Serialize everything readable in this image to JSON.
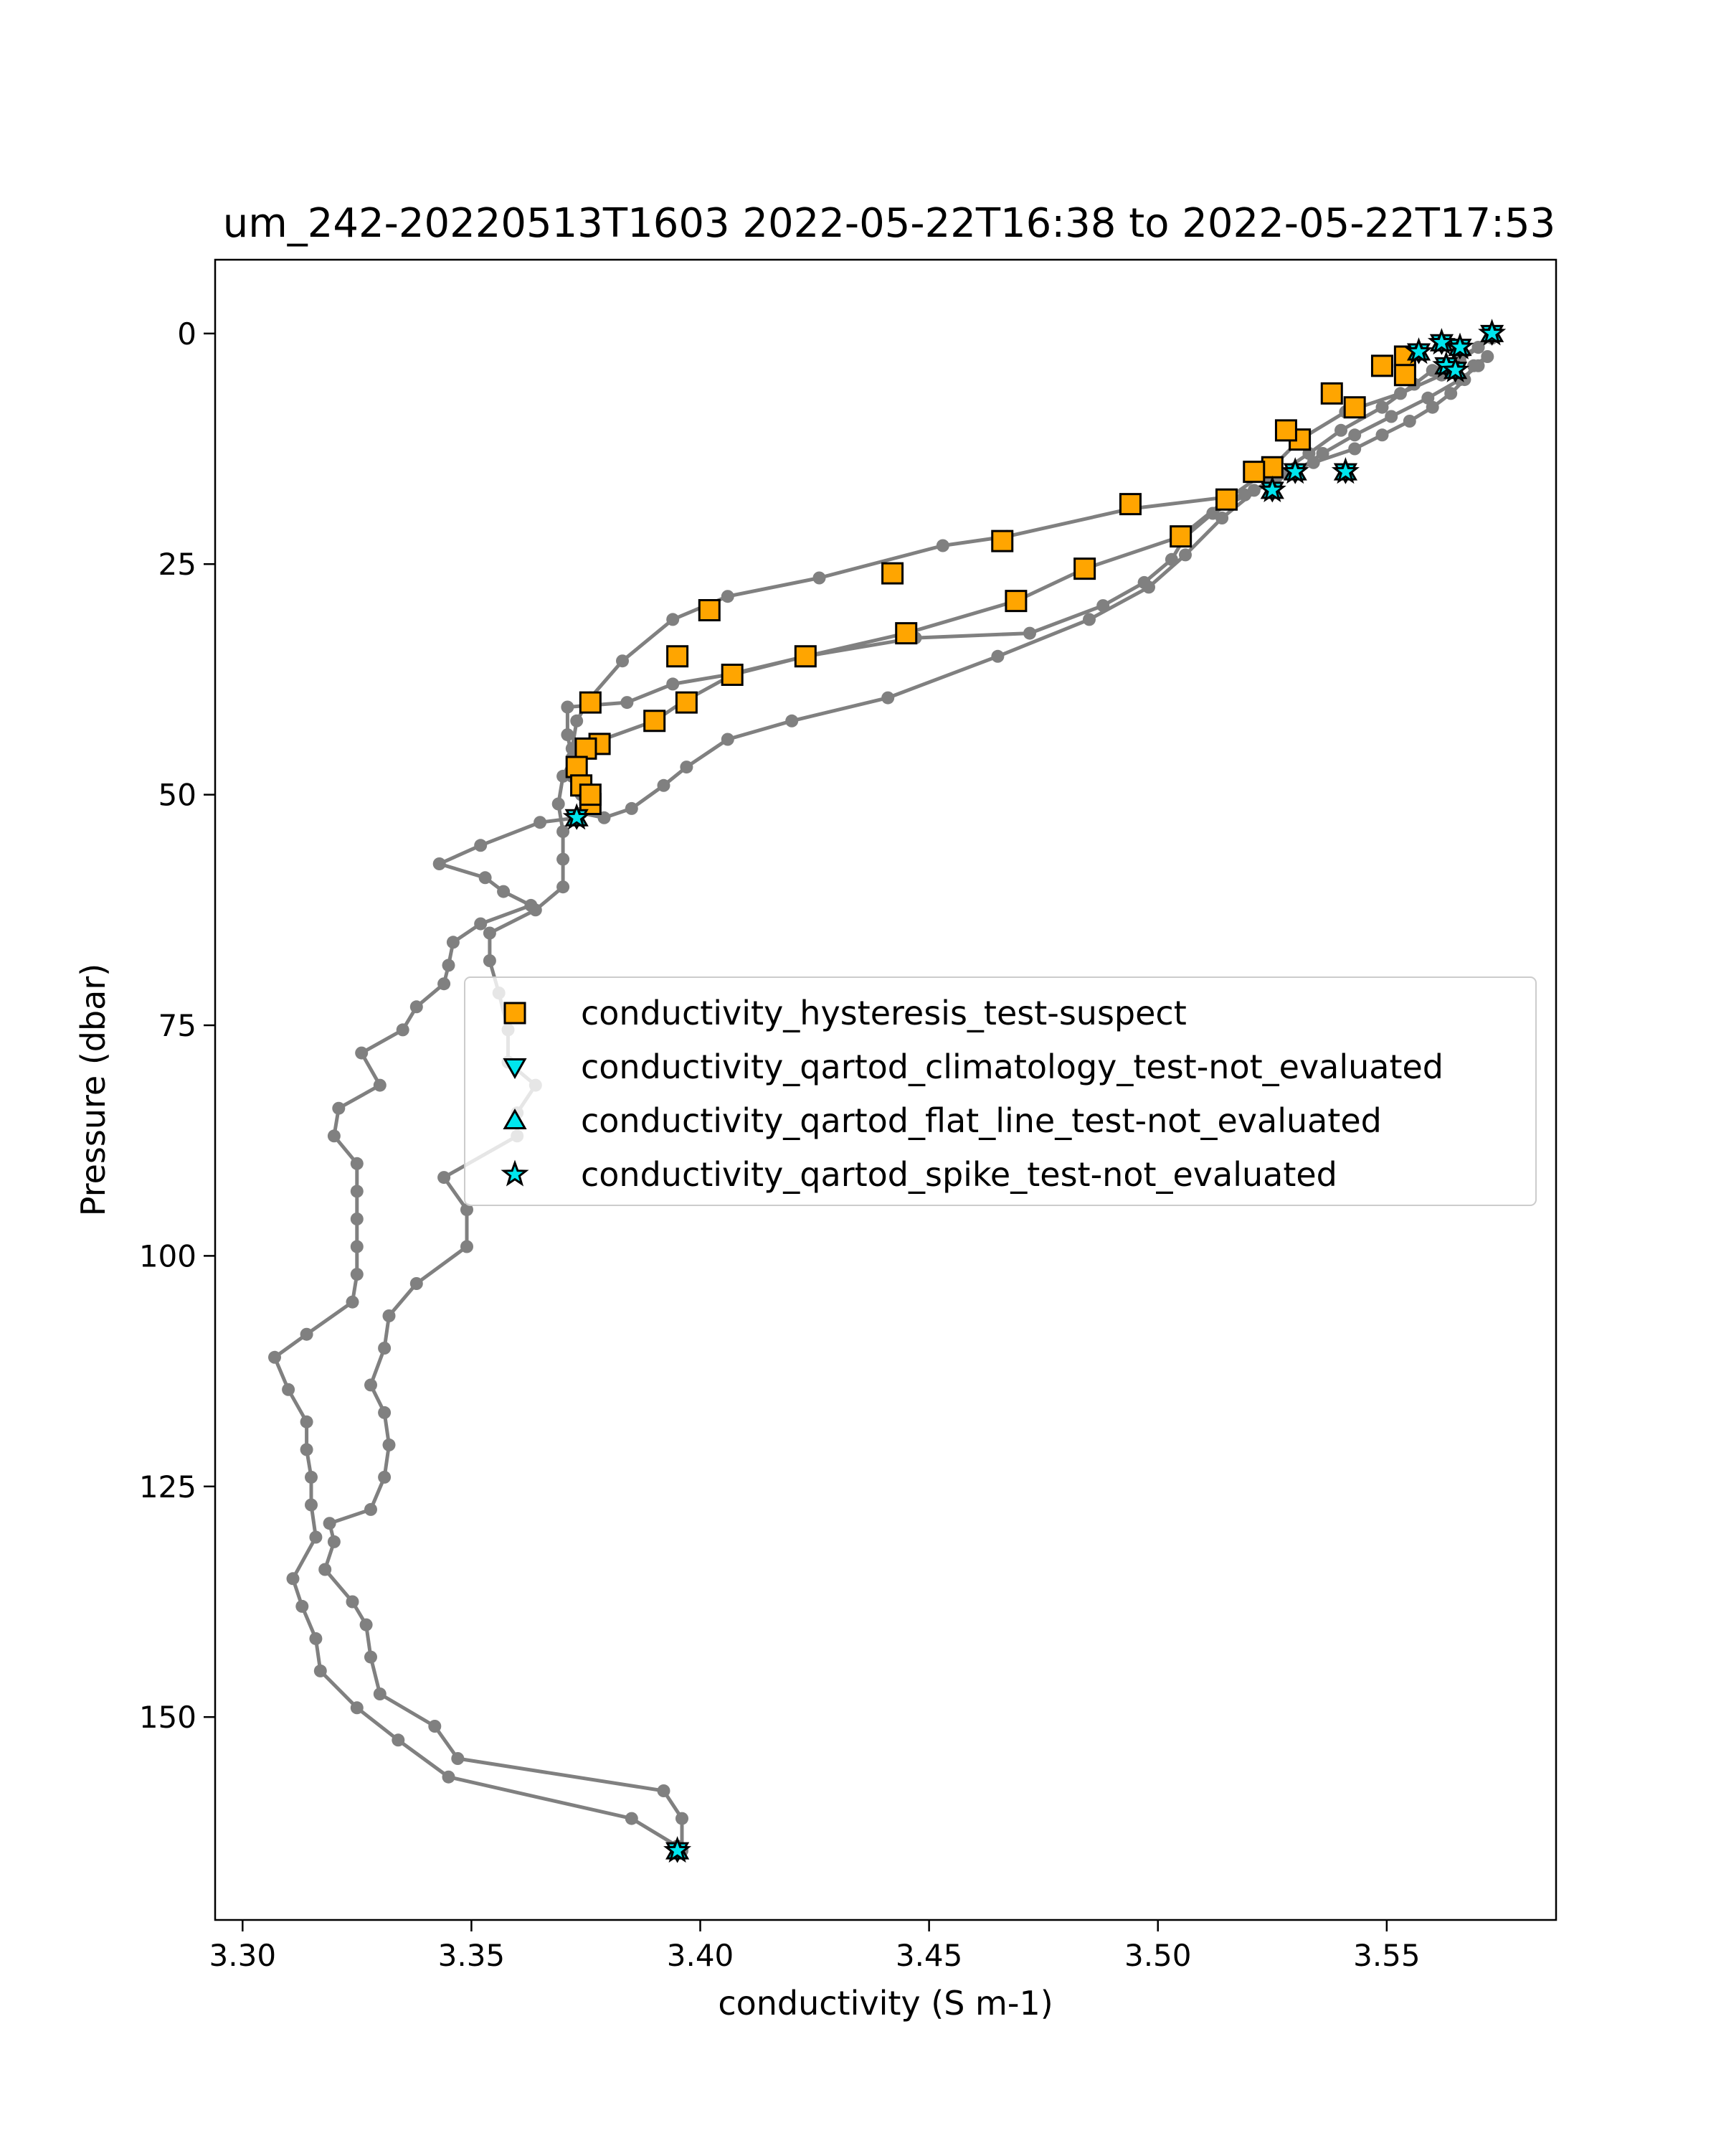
{
  "chart_data": {
    "type": "scatter",
    "title": "um_242-20220513T1603 2022-05-22T16:38 to 2022-05-22T17:53",
    "xlabel": "conductivity (S m-1)",
    "ylabel": "Pressure (dbar)",
    "xlim": [
      3.294,
      3.587
    ],
    "ylim": [
      172,
      -8
    ],
    "y_inverted": true,
    "grid": false,
    "legend_position": "center-right",
    "x_ticks": [
      3.3,
      3.35,
      3.4,
      3.45,
      3.5,
      3.55
    ],
    "x_tick_labels": [
      "3.30",
      "3.35",
      "3.40",
      "3.45",
      "3.50",
      "3.55"
    ],
    "y_ticks": [
      0,
      25,
      50,
      75,
      100,
      125,
      150
    ],
    "y_tick_labels": [
      "0",
      "25",
      "50",
      "75",
      "100",
      "125",
      "150"
    ],
    "profile": {
      "color": "#808080",
      "points": [
        [
          3.573,
          0
        ],
        [
          3.57,
          1.5
        ],
        [
          3.566,
          3
        ],
        [
          3.562,
          4.5
        ],
        [
          3.553,
          6.5
        ],
        [
          3.541,
          8.5
        ],
        [
          3.531,
          11.5
        ],
        [
          3.525,
          14.5
        ],
        [
          3.515,
          18
        ],
        [
          3.505,
          22
        ],
        [
          3.484,
          25.5
        ],
        [
          3.469,
          29
        ],
        [
          3.445,
          32.5
        ],
        [
          3.423,
          35
        ],
        [
          3.407,
          37
        ],
        [
          3.396,
          40
        ],
        [
          3.39,
          42
        ],
        [
          3.376,
          44.5
        ],
        [
          3.374,
          45
        ],
        [
          3.373,
          47
        ],
        [
          3.374,
          49
        ],
        [
          3.376,
          51
        ],
        [
          3.373,
          52.5
        ],
        [
          3.365,
          53
        ],
        [
          3.352,
          55.5
        ],
        [
          3.343,
          57.5
        ],
        [
          3.353,
          59
        ],
        [
          3.357,
          60.5
        ],
        [
          3.363,
          62
        ],
        [
          3.352,
          64
        ],
        [
          3.346,
          66
        ],
        [
          3.345,
          68.5
        ],
        [
          3.344,
          70.5
        ],
        [
          3.338,
          73
        ],
        [
          3.335,
          75.5
        ],
        [
          3.326,
          78
        ],
        [
          3.33,
          81.5
        ],
        [
          3.321,
          84
        ],
        [
          3.32,
          87
        ],
        [
          3.325,
          90
        ],
        [
          3.325,
          93
        ],
        [
          3.325,
          96
        ],
        [
          3.325,
          99
        ],
        [
          3.325,
          102
        ],
        [
          3.324,
          105
        ],
        [
          3.314,
          108.5
        ],
        [
          3.307,
          111
        ],
        [
          3.31,
          114.5
        ],
        [
          3.314,
          118
        ],
        [
          3.314,
          121
        ],
        [
          3.315,
          124
        ],
        [
          3.315,
          127
        ],
        [
          3.316,
          130.5
        ],
        [
          3.311,
          135
        ],
        [
          3.313,
          138
        ],
        [
          3.316,
          141.5
        ],
        [
          3.317,
          145
        ],
        [
          3.325,
          149
        ],
        [
          3.334,
          152.5
        ],
        [
          3.345,
          156.5
        ],
        [
          3.385,
          161
        ],
        [
          3.395,
          164
        ],
        [
          3.396,
          164.5
        ],
        [
          3.396,
          161
        ],
        [
          3.392,
          158
        ],
        [
          3.347,
          154.5
        ],
        [
          3.342,
          151
        ],
        [
          3.33,
          147.5
        ],
        [
          3.328,
          143.5
        ],
        [
          3.327,
          140
        ],
        [
          3.324,
          137.5
        ],
        [
          3.318,
          134
        ],
        [
          3.32,
          131
        ],
        [
          3.319,
          129
        ],
        [
          3.328,
          127.5
        ],
        [
          3.331,
          124
        ],
        [
          3.332,
          120.5
        ],
        [
          3.331,
          117
        ],
        [
          3.328,
          114
        ],
        [
          3.331,
          110
        ],
        [
          3.332,
          106.5
        ],
        [
          3.338,
          103
        ],
        [
          3.349,
          99
        ],
        [
          3.349,
          95
        ],
        [
          3.344,
          91.5
        ],
        [
          3.36,
          87
        ],
        [
          3.36,
          84.5
        ],
        [
          3.364,
          81.5
        ],
        [
          3.358,
          79
        ],
        [
          3.358,
          75.5
        ],
        [
          3.356,
          71.5
        ],
        [
          3.354,
          68
        ],
        [
          3.354,
          65
        ],
        [
          3.364,
          62.5
        ],
        [
          3.37,
          60
        ],
        [
          3.37,
          57
        ],
        [
          3.37,
          54
        ],
        [
          3.369,
          51
        ],
        [
          3.37,
          48
        ],
        [
          3.372,
          46
        ],
        [
          3.371,
          43.5
        ],
        [
          3.371,
          40.5
        ],
        [
          3.384,
          40
        ],
        [
          3.394,
          38
        ],
        [
          3.406,
          37
        ],
        [
          3.423,
          35
        ],
        [
          3.447,
          33
        ],
        [
          3.472,
          32.5
        ],
        [
          3.488,
          29.5
        ],
        [
          3.497,
          27
        ],
        [
          3.503,
          24.5
        ],
        [
          3.506,
          22
        ],
        [
          3.512,
          19.5
        ],
        [
          3.521,
          17
        ],
        [
          3.526,
          15.5
        ],
        [
          3.534,
          14
        ],
        [
          3.543,
          12.5
        ],
        [
          3.549,
          11
        ],
        [
          3.555,
          9.5
        ],
        [
          3.56,
          8
        ],
        [
          3.564,
          6.5
        ],
        [
          3.567,
          5
        ],
        [
          3.569,
          3.5
        ],
        [
          3.572,
          2.5
        ],
        [
          3.57,
          3.5
        ],
        [
          3.566,
          5
        ],
        [
          3.559,
          7
        ],
        [
          3.551,
          9
        ],
        [
          3.543,
          11
        ],
        [
          3.536,
          13
        ],
        [
          3.53,
          15
        ],
        [
          3.519,
          17.5
        ],
        [
          3.494,
          19
        ],
        [
          3.467,
          22
        ],
        [
          3.453,
          23
        ],
        [
          3.426,
          26.5
        ],
        [
          3.406,
          28.5
        ],
        [
          3.394,
          31
        ],
        [
          3.383,
          35.5
        ],
        [
          3.376,
          39.5
        ],
        [
          3.373,
          42
        ],
        [
          3.372,
          45
        ],
        [
          3.372,
          48
        ],
        [
          3.374,
          50
        ],
        [
          3.374,
          52
        ],
        [
          3.379,
          52.5
        ],
        [
          3.385,
          51.5
        ],
        [
          3.392,
          49
        ],
        [
          3.397,
          47
        ],
        [
          3.406,
          44
        ],
        [
          3.42,
          42
        ],
        [
          3.441,
          39.5
        ],
        [
          3.465,
          35
        ],
        [
          3.485,
          31
        ],
        [
          3.498,
          27.5
        ],
        [
          3.506,
          24
        ],
        [
          3.514,
          20
        ],
        [
          3.524,
          16
        ],
        [
          3.533,
          13
        ],
        [
          3.54,
          10.5
        ],
        [
          3.549,
          8
        ],
        [
          3.556,
          5.5
        ],
        [
          3.56,
          4
        ],
        [
          3.566,
          2.5
        ],
        [
          3.57,
          1.5
        ],
        [
          3.573,
          0.5
        ]
      ]
    },
    "series": [
      {
        "name": "conductivity_hysteresis_test-suspect",
        "marker": "square",
        "color": "#ffa500",
        "points": [
          [
            3.554,
            2.5
          ],
          [
            3.554,
            4.5
          ],
          [
            3.549,
            3.5
          ],
          [
            3.543,
            8
          ],
          [
            3.538,
            6.5
          ],
          [
            3.531,
            11.5
          ],
          [
            3.528,
            10.5
          ],
          [
            3.525,
            14.5
          ],
          [
            3.521,
            15
          ],
          [
            3.515,
            18
          ],
          [
            3.505,
            22
          ],
          [
            3.494,
            18.5
          ],
          [
            3.484,
            25.5
          ],
          [
            3.469,
            29
          ],
          [
            3.466,
            22.5
          ],
          [
            3.445,
            32.5
          ],
          [
            3.442,
            26
          ],
          [
            3.423,
            35
          ],
          [
            3.407,
            37
          ],
          [
            3.402,
            30
          ],
          [
            3.397,
            40
          ],
          [
            3.395,
            35
          ],
          [
            3.39,
            42
          ],
          [
            3.378,
            44.5
          ],
          [
            3.376,
            40
          ],
          [
            3.375,
            45
          ],
          [
            3.373,
            47
          ],
          [
            3.374,
            49
          ],
          [
            3.376,
            51
          ],
          [
            3.376,
            50
          ]
        ]
      },
      {
        "name": "conductivity_qartod_climatology_test-not_evaluated",
        "marker": "triangle-down",
        "color": "#00e5ee",
        "points": [
          [
            3.573,
            0
          ],
          [
            3.566,
            1.5
          ],
          [
            3.562,
            1
          ],
          [
            3.563,
            3.5
          ],
          [
            3.565,
            4
          ],
          [
            3.557,
            2
          ],
          [
            3.541,
            15
          ],
          [
            3.53,
            15
          ],
          [
            3.525,
            17
          ],
          [
            3.373,
            52.5
          ],
          [
            3.395,
            164.5
          ]
        ]
      },
      {
        "name": "conductivity_qartod_flat_line_test-not_evaluated",
        "marker": "triangle-up",
        "color": "#00e5ee",
        "points": [
          [
            3.573,
            0
          ],
          [
            3.566,
            1.5
          ],
          [
            3.562,
            1
          ],
          [
            3.563,
            3.5
          ],
          [
            3.565,
            4
          ],
          [
            3.557,
            2
          ],
          [
            3.541,
            15
          ],
          [
            3.53,
            15
          ],
          [
            3.525,
            17
          ],
          [
            3.373,
            52.5
          ],
          [
            3.395,
            164.5
          ]
        ]
      },
      {
        "name": "conductivity_qartod_spike_test-not_evaluated",
        "marker": "star",
        "color": "#00e5ee",
        "points": [
          [
            3.573,
            0
          ],
          [
            3.566,
            1.5
          ],
          [
            3.562,
            1
          ],
          [
            3.563,
            3.5
          ],
          [
            3.565,
            4
          ],
          [
            3.557,
            2
          ],
          [
            3.541,
            15
          ],
          [
            3.53,
            15
          ],
          [
            3.525,
            17
          ],
          [
            3.373,
            52.5
          ],
          [
            3.395,
            164.5
          ]
        ]
      }
    ]
  }
}
